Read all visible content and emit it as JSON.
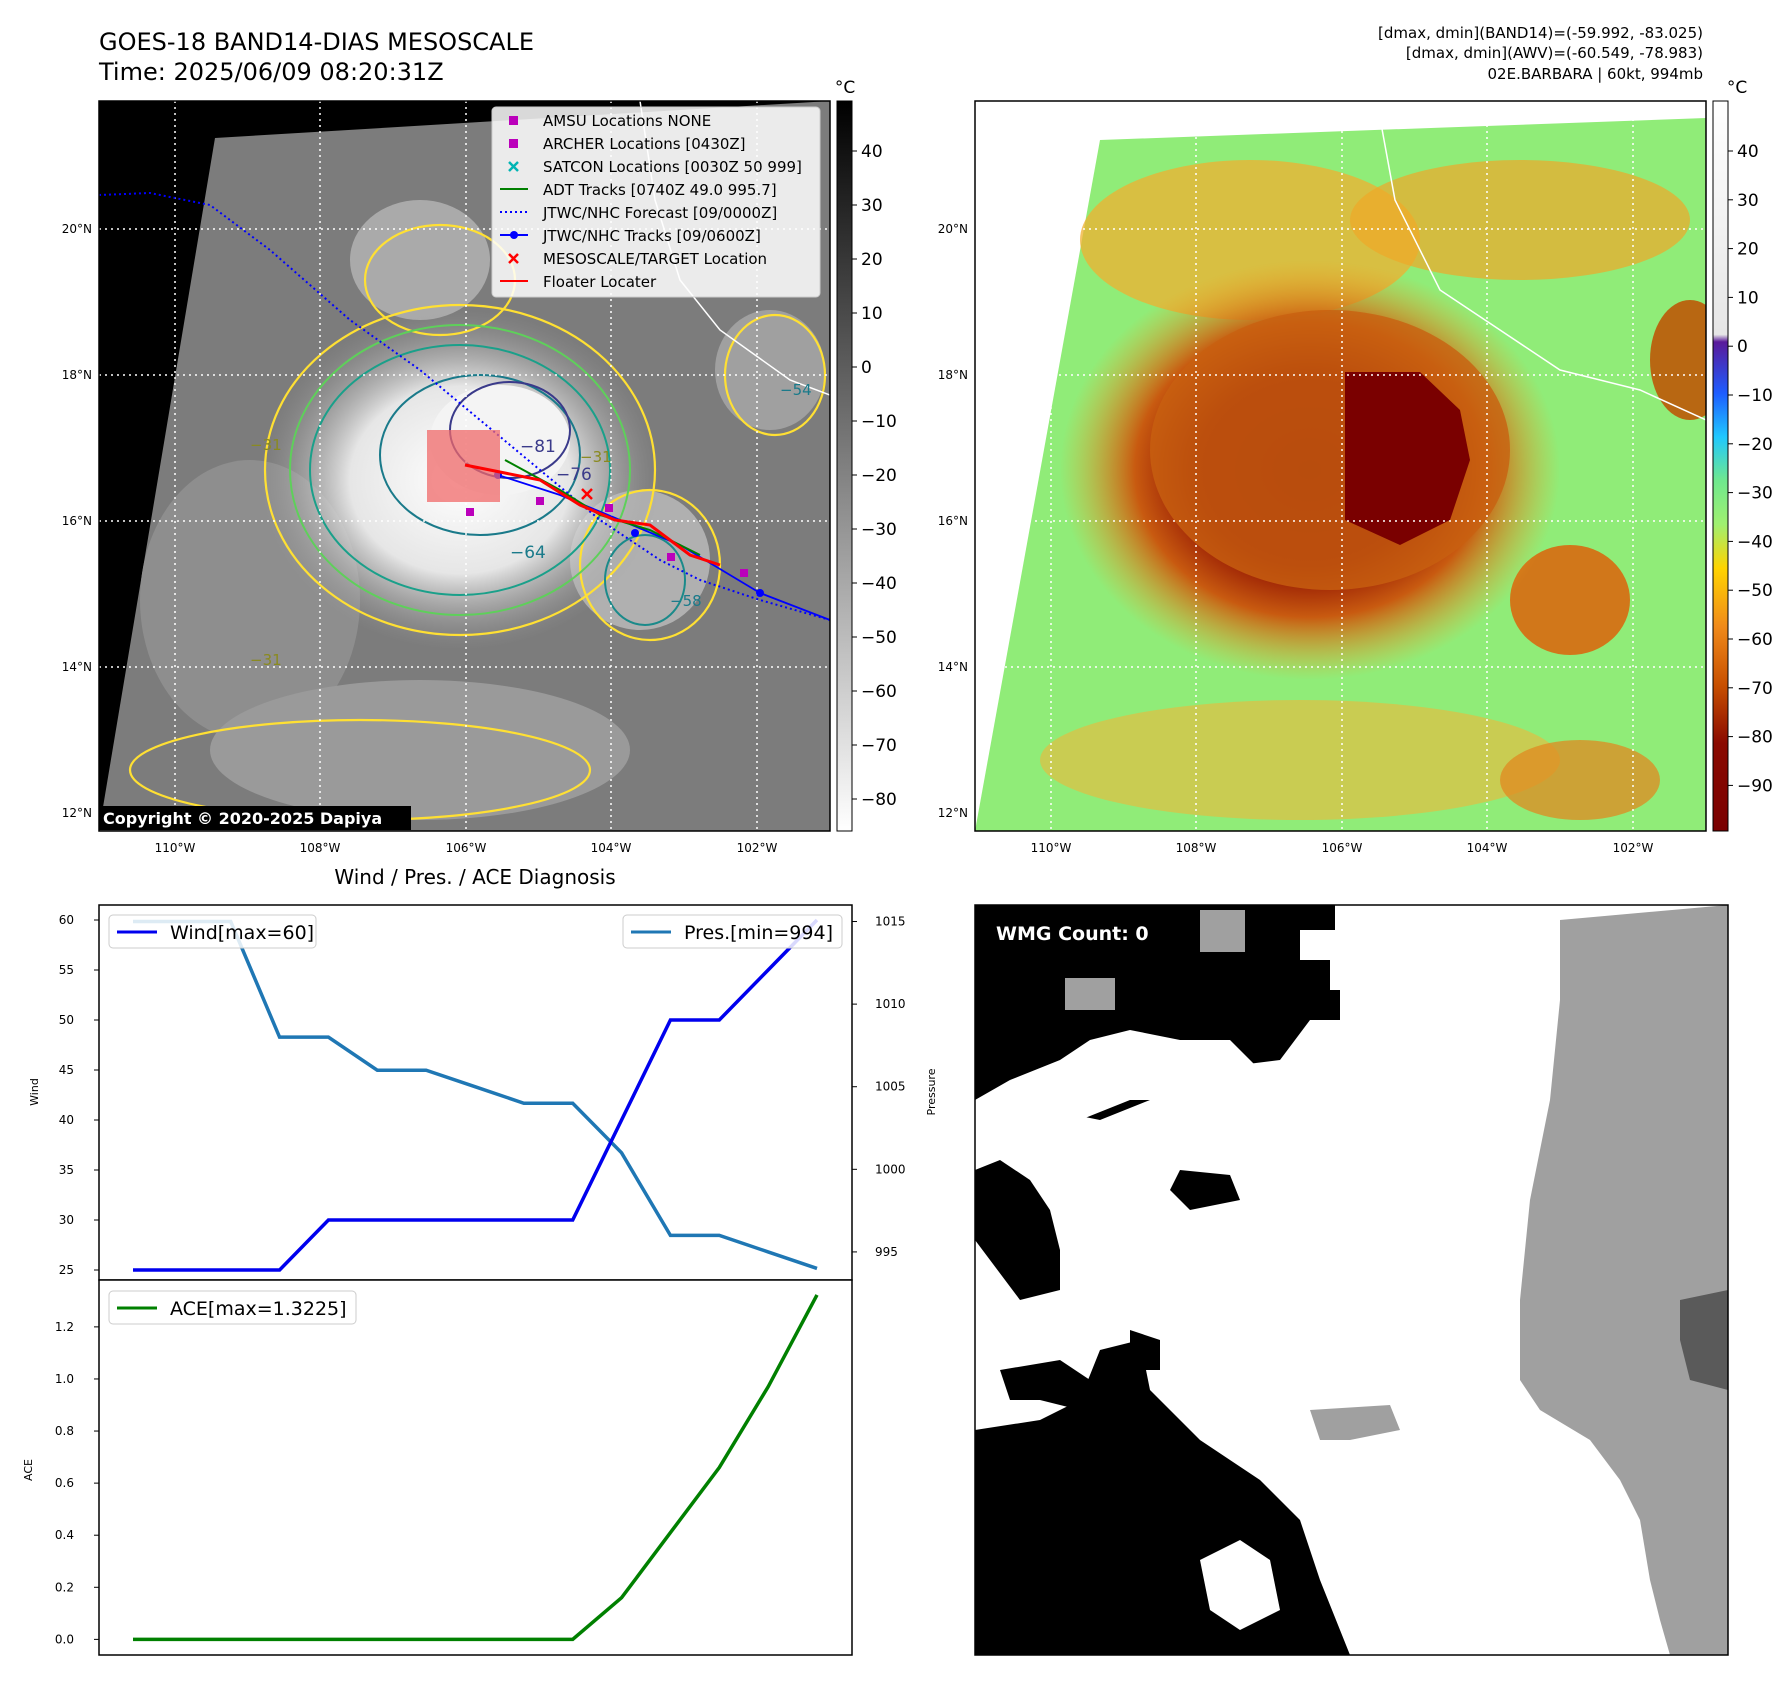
{
  "header": {
    "title_line1": "GOES-18 BAND14-DIAS MESOSCALE",
    "title_line2": "Time: 2025/06/09 08:20:31Z",
    "info_line1": "[dmax, dmin](BAND14)=(-59.992, -83.025)",
    "info_line2": "[dmax, dmin](AWV)=(-60.549, -78.983)",
    "info_line3": "02E.BARBARA | 60kt, 994mb"
  },
  "map_left": {
    "lat_labels": [
      "20°N",
      "18°N",
      "16°N",
      "14°N",
      "12°N"
    ],
    "lon_labels": [
      "110°W",
      "108°W",
      "106°W",
      "104°W",
      "102°W"
    ],
    "colorbar_unit": "°C",
    "colorbar_ticks": [
      "40",
      "30",
      "20",
      "10",
      "0",
      "−10",
      "−20",
      "−30",
      "−40",
      "−50",
      "−60",
      "−70",
      "−80"
    ],
    "copyright": "Copyright © 2020-2025 Dapiya",
    "contour_labels": [
      "−81",
      "−76",
      "−64",
      "−31",
      "−54",
      "−31",
      "−58",
      "−31"
    ],
    "legend": [
      {
        "label": "AMSU Locations NONE",
        "color": "#bb00bb",
        "marker": "square"
      },
      {
        "label": "ARCHER Locations [0430Z]",
        "color": "#bb00bb",
        "marker": "square"
      },
      {
        "label": "SATCON Locations [0030Z 50 999]",
        "color": "#00b4b4",
        "marker": "x"
      },
      {
        "label": "ADT Tracks [0740Z 49.0 995.7]",
        "color": "#008000",
        "marker": "line"
      },
      {
        "label": "JTWC/NHC Forecast [09/0000Z]",
        "color": "#0000ff",
        "marker": "dotted"
      },
      {
        "label": "JTWC/NHC Tracks [09/0600Z]",
        "color": "#0000ff",
        "marker": "line-dot"
      },
      {
        "label": "MESOSCALE/TARGET Location",
        "color": "#ff0000",
        "marker": "x"
      },
      {
        "label": "Floater Locater",
        "color": "#ff0000",
        "marker": "line"
      }
    ]
  },
  "map_right": {
    "lat_labels": [
      "20°N",
      "18°N",
      "16°N",
      "14°N",
      "12°N"
    ],
    "lon_labels": [
      "110°W",
      "108°W",
      "106°W",
      "104°W",
      "102°W"
    ],
    "colorbar_unit": "°C",
    "colorbar_ticks": [
      "40",
      "30",
      "20",
      "10",
      "0",
      "−10",
      "−20",
      "−30",
      "−40",
      "−50",
      "−60",
      "−70",
      "−80",
      "−90"
    ]
  },
  "wmg": {
    "label": "WMG Count: 0"
  },
  "chart_data": [
    {
      "type": "line",
      "title": "Wind / Pres. / ACE Diagnosis",
      "ylabel": "Wind",
      "ylabel_right": "Pressure",
      "ylim": [
        24,
        61.5
      ],
      "ylim_right": [
        993.3,
        1016
      ],
      "yticks": [
        25,
        30,
        35,
        40,
        45,
        50,
        55,
        60
      ],
      "yticks_right": [
        995,
        1000,
        1005,
        1010,
        1015
      ],
      "series": [
        {
          "name": "Wind[max=60]",
          "color": "#0000ee",
          "axis": "left",
          "values": [
            25,
            25,
            25,
            25,
            30,
            30,
            30,
            30,
            30,
            30,
            40,
            50,
            50,
            55,
            60
          ]
        },
        {
          "name": "Pres.[min=994]",
          "color": "#1f77b4",
          "axis": "right",
          "values": [
            1015,
            1015,
            1015,
            1008,
            1008,
            1006,
            1006,
            1005,
            1004,
            1004,
            1001,
            996,
            996,
            995,
            994
          ]
        }
      ]
    },
    {
      "type": "line",
      "ylabel": "ACE",
      "ylim": [
        -0.06,
        1.38
      ],
      "yticks": [
        "0.0",
        "0.2",
        "0.4",
        "0.6",
        "0.8",
        "1.0",
        "1.2"
      ],
      "series": [
        {
          "name": "ACE[max=1.3225]",
          "color": "#008000",
          "values": [
            0,
            0,
            0,
            0,
            0,
            0,
            0,
            0,
            0,
            0,
            0.16,
            0.41,
            0.66,
            0.97,
            1.3225
          ]
        }
      ]
    }
  ]
}
